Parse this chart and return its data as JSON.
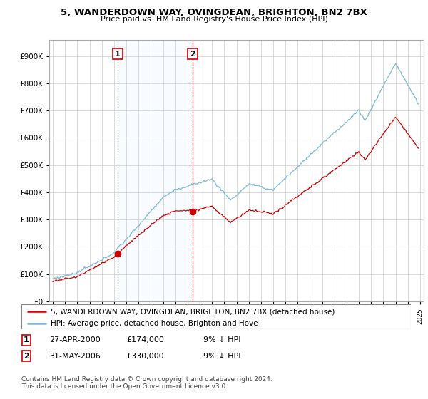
{
  "title": "5, WANDERDOWN WAY, OVINGDEAN, BRIGHTON, BN2 7BX",
  "subtitle": "Price paid vs. HM Land Registry's House Price Index (HPI)",
  "sale1_date": "27-APR-2000",
  "sale1_price": 174000,
  "sale1_label": "1",
  "sale1_x": 2000.29,
  "sale2_date": "31-MAY-2006",
  "sale2_price": 330000,
  "sale2_label": "2",
  "sale2_x": 2006.41,
  "legend_line1": "5, WANDERDOWN WAY, OVINGDEAN, BRIGHTON, BN2 7BX (detached house)",
  "legend_line2": "HPI: Average price, detached house, Brighton and Hove",
  "footnote1": "Contains HM Land Registry data © Crown copyright and database right 2024.",
  "footnote2": "This data is licensed under the Open Government Licence v3.0.",
  "hpi_color": "#7ab8d9",
  "price_color": "#cc0000",
  "shade_color": "#ddeeff",
  "background_color": "#ffffff",
  "grid_color": "#cccccc",
  "ylim_max": 950000,
  "xlim_start": 1994.7,
  "xlim_end": 2025.3
}
